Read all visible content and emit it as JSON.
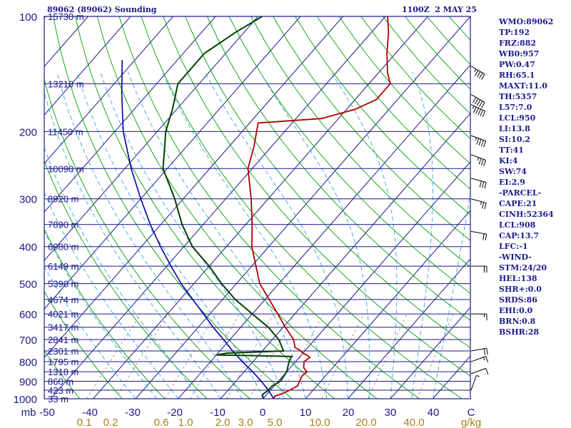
{
  "chart_data": {
    "type": "skew-t sounding",
    "title": "89062 (89062) Sounding",
    "time": "1100Z  2 MAY 25",
    "pressure_labels": [
      "100",
      "200",
      "300",
      "400",
      "500",
      "600",
      "700",
      "800",
      "900",
      "1000"
    ],
    "temp_ticks": [
      "-50",
      "-40",
      "-30",
      "-20",
      "-10",
      "0",
      "10",
      "20",
      "30",
      "40",
      "C"
    ],
    "mix_ticks": [
      "0.1",
      "0.2",
      "0.6",
      "1.0",
      "2.0",
      "3.0",
      "5.0",
      "10.0",
      "20.0",
      "40.0",
      "g/kg"
    ],
    "heights": [
      {
        "label": "15730 m",
        "p": 100
      },
      {
        "label": "13210 m",
        "p": 150
      },
      {
        "label": "11450 m",
        "p": 200
      },
      {
        "label": "10090 m",
        "p": 250
      },
      {
        "label": "8920 m",
        "p": 300
      },
      {
        "label": "7890 m",
        "p": 350
      },
      {
        "label": "6980 m",
        "p": 400
      },
      {
        "label": "6149 m",
        "p": 450
      },
      {
        "label": "5390 m",
        "p": 500
      },
      {
        "label": "4674 m",
        "p": 550
      },
      {
        "label": "4021 m",
        "p": 600
      },
      {
        "label": "3417 m",
        "p": 650
      },
      {
        "label": "2841 m",
        "p": 700
      },
      {
        "label": "2301 m",
        "p": 750
      },
      {
        "label": "1795 m",
        "p": 800
      },
      {
        "label": "1318 m",
        "p": 850
      },
      {
        "label": "860 m",
        "p": 900
      },
      {
        "label": "423 m",
        "p": 950
      },
      {
        "label": "33 m",
        "p": 1000
      }
    ],
    "temperature_profile": [
      {
        "p": 998,
        "t": 2.5
      },
      {
        "p": 985,
        "t": 2.2
      },
      {
        "p": 970,
        "t": 3.5
      },
      {
        "p": 950,
        "t": 4.5
      },
      {
        "p": 925,
        "t": 5.5
      },
      {
        "p": 900,
        "t": 5.0
      },
      {
        "p": 870,
        "t": 4.5
      },
      {
        "p": 850,
        "t": 4.8
      },
      {
        "p": 830,
        "t": 3.2
      },
      {
        "p": 800,
        "t": 2.0
      },
      {
        "p": 780,
        "t": 2.5
      },
      {
        "p": 770,
        "t": 1.5
      },
      {
        "p": 760,
        "t": 0.0
      },
      {
        "p": 745,
        "t": -1.5
      },
      {
        "p": 735,
        "t": -3.0
      },
      {
        "p": 700,
        "t": -5.0
      },
      {
        "p": 650,
        "t": -9.5
      },
      {
        "p": 600,
        "t": -14.0
      },
      {
        "p": 550,
        "t": -19.0
      },
      {
        "p": 500,
        "t": -24.5
      },
      {
        "p": 450,
        "t": -29.0
      },
      {
        "p": 400,
        "t": -34.0
      },
      {
        "p": 350,
        "t": -38.5
      },
      {
        "p": 300,
        "t": -44.0
      },
      {
        "p": 250,
        "t": -51.0
      },
      {
        "p": 220,
        "t": -54.0
      },
      {
        "p": 190,
        "t": -58.0
      },
      {
        "p": 185,
        "t": -44.0
      },
      {
        "p": 175,
        "t": -38.0
      },
      {
        "p": 165,
        "t": -35.0
      },
      {
        "p": 150,
        "t": -35.0
      },
      {
        "p": 140,
        "t": -38.0
      },
      {
        "p": 125,
        "t": -42.0
      },
      {
        "p": 110,
        "t": -46.0
      },
      {
        "p": 100,
        "t": -49.5
      }
    ],
    "dewpoint_profile": [
      {
        "p": 998,
        "t": 0.0
      },
      {
        "p": 975,
        "t": -1.0
      },
      {
        "p": 950,
        "t": -0.5
      },
      {
        "p": 925,
        "t": -0.5
      },
      {
        "p": 900,
        "t": 0.5
      },
      {
        "p": 850,
        "t": 0.0
      },
      {
        "p": 800,
        "t": -1.5
      },
      {
        "p": 775,
        "t": -2.0
      },
      {
        "p": 768,
        "t": -20.0
      },
      {
        "p": 760,
        "t": -18.0
      },
      {
        "p": 750,
        "t": -5.0
      },
      {
        "p": 700,
        "t": -8.5
      },
      {
        "p": 650,
        "t": -13.5
      },
      {
        "p": 600,
        "t": -20.0
      },
      {
        "p": 550,
        "t": -27.0
      },
      {
        "p": 500,
        "t": -33.5
      },
      {
        "p": 450,
        "t": -40.0
      },
      {
        "p": 400,
        "t": -48.0
      },
      {
        "p": 350,
        "t": -55.0
      },
      {
        "p": 300,
        "t": -62.0
      },
      {
        "p": 250,
        "t": -71.0
      },
      {
        "p": 220,
        "t": -75.0
      },
      {
        "p": 200,
        "t": -78.0
      },
      {
        "p": 175,
        "t": -81.0
      },
      {
        "p": 150,
        "t": -85.0
      },
      {
        "p": 125,
        "t": -85.0
      },
      {
        "p": 110,
        "t": -82.0
      },
      {
        "p": 100,
        "t": -79.0
      }
    ],
    "parcel_profile": [
      {
        "p": 1000,
        "t": 2.5
      },
      {
        "p": 950,
        "t": -0.5
      },
      {
        "p": 900,
        "t": -4.0
      },
      {
        "p": 850,
        "t": -8.0
      },
      {
        "p": 800,
        "t": -12.5
      },
      {
        "p": 750,
        "t": -17.0
      },
      {
        "p": 700,
        "t": -21.5
      },
      {
        "p": 650,
        "t": -26.5
      },
      {
        "p": 600,
        "t": -31.5
      },
      {
        "p": 550,
        "t": -37.0
      },
      {
        "p": 500,
        "t": -43.0
      },
      {
        "p": 450,
        "t": -49.0
      },
      {
        "p": 400,
        "t": -55.5
      },
      {
        "p": 350,
        "t": -62.5
      },
      {
        "p": 300,
        "t": -70.0
      },
      {
        "p": 250,
        "t": -78.5
      },
      {
        "p": 200,
        "t": -88.0
      },
      {
        "p": 160,
        "t": -96.0
      },
      {
        "p": 130,
        "t": -103.0
      }
    ],
    "wind_barbs": [
      {
        "p": 135,
        "dir": 300,
        "kt": 45
      },
      {
        "p": 160,
        "dir": 300,
        "kt": 50
      },
      {
        "p": 170,
        "dir": 295,
        "kt": 55
      },
      {
        "p": 205,
        "dir": 290,
        "kt": 45
      },
      {
        "p": 230,
        "dir": 290,
        "kt": 35
      },
      {
        "p": 265,
        "dir": 285,
        "kt": 30
      },
      {
        "p": 300,
        "dir": 285,
        "kt": 25
      },
      {
        "p": 365,
        "dir": 280,
        "kt": 20
      },
      {
        "p": 450,
        "dir": 270,
        "kt": 20
      },
      {
        "p": 600,
        "dir": 270,
        "kt": 15
      },
      {
        "p": 750,
        "dir": 260,
        "kt": 20
      },
      {
        "p": 800,
        "dir": 250,
        "kt": 15
      },
      {
        "p": 860,
        "dir": 250,
        "kt": 10
      },
      {
        "p": 950,
        "dir": 200,
        "kt": 5
      }
    ],
    "colors": {
      "temperature": "#b00000",
      "dewpoint": "#004000",
      "parcel": "#0000a0",
      "isobar": "#1a1a8c",
      "isotherm": "#1a1a8c",
      "dry_adiabat": "#00a000",
      "moist_adiabat": "#3aa0e0",
      "mixing_ratio": "#808080",
      "text": "#1a1a8c"
    }
  },
  "indices": [
    "WMO:89062",
    "TP:192",
    "FRZ:882",
    "WB0:957",
    "PW:0.47",
    "RH:65.1",
    "MAXT:11.0",
    "TH:5357",
    "L57:7.0",
    "LCL:950",
    "LI:13.8",
    "SI:10.2",
    "TT:41",
    "KI:4",
    "SW:74",
    "EI:2.9",
    "-PARCEL-",
    "CAPE:21",
    "CINH:52364",
    "LCL:908",
    "CAP:13.7",
    "LFC:-1",
    "-WIND-",
    "STM:24/20",
    "HEL:138",
    "SHR+:0.0",
    "SRDS:86",
    "EHI:0.0",
    "BRN:0.8",
    "BSHR:28"
  ],
  "axis_unit_label": "mb"
}
